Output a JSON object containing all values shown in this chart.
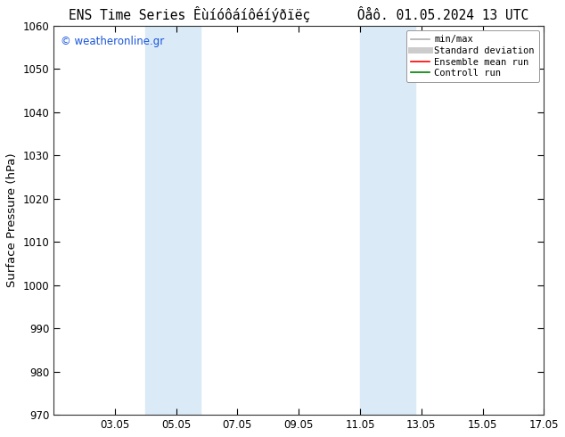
{
  "title": "ENS Time Series Êùíóôáíôéíýðïëç",
  "title2": "Ôåô. 01.05.2024 13 UTC",
  "ylabel": "Surface Pressure (hPa)",
  "watermark": "© weatheronline.gr",
  "ylim": [
    970,
    1060
  ],
  "yticks": [
    970,
    980,
    990,
    1000,
    1010,
    1020,
    1030,
    1040,
    1050,
    1060
  ],
  "xlim_start": 1,
  "xlim_end": 17,
  "xtick_labels": [
    "03.05",
    "05.05",
    "07.05",
    "09.05",
    "11.05",
    "13.05",
    "15.05",
    "17.05"
  ],
  "xtick_positions": [
    3,
    5,
    7,
    9,
    11,
    13,
    15,
    17
  ],
  "blue_bands": [
    {
      "x_start": 4.0,
      "x_end": 5.8
    },
    {
      "x_start": 11.0,
      "x_end": 12.8
    }
  ],
  "band_color": "#daeaf7",
  "background_color": "#ffffff",
  "legend_items": [
    {
      "label": "min/max",
      "color": "#b0b0b0",
      "lw": 1.2
    },
    {
      "label": "Standard deviation",
      "color": "#cccccc",
      "lw": 5
    },
    {
      "label": "Ensemble mean run",
      "color": "#ff0000",
      "lw": 1.2
    },
    {
      "label": "Controll run",
      "color": "#008000",
      "lw": 1.2
    }
  ],
  "watermark_color": "#1a56db",
  "title_fontsize": 10.5,
  "tick_fontsize": 8.5,
  "ylabel_fontsize": 9.5,
  "legend_fontsize": 7.5
}
